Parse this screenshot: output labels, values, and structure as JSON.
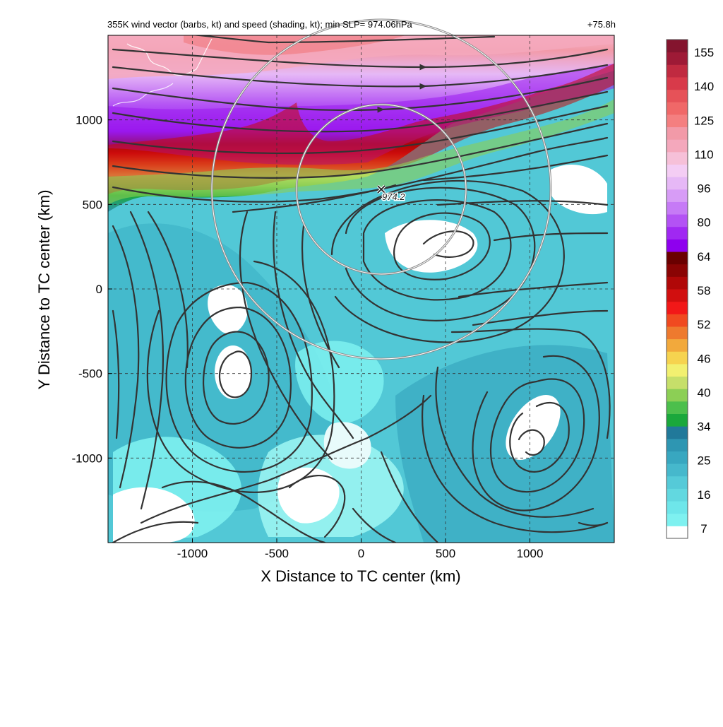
{
  "header": {
    "title": "355K wind vector (barbs, kt) and speed (shading, kt); min SLP= 974.06hPa",
    "lead_time": "+75.8h"
  },
  "chart_data": {
    "type": "heatmap",
    "title": "355K wind vector (barbs, kt) and speed (shading, kt); min SLP= 974.06hPa",
    "lead_time": "+75.8h",
    "xlabel": "X Distance to TC center (km)",
    "ylabel": "Y Distance to TC center (km)",
    "xlim": [
      -1500,
      1500
    ],
    "ylim": [
      -1500,
      1500
    ],
    "xticks": [
      -1000,
      -500,
      0,
      500,
      1000
    ],
    "yticks": [
      -1000,
      -500,
      0,
      500,
      1000
    ],
    "grid": "dashed",
    "colorbar": {
      "placement": "right",
      "tick_labels": [
        "155",
        "140",
        "125",
        "110",
        "96",
        "80",
        "64",
        "58",
        "52",
        "46",
        "40",
        "34",
        "25",
        "16",
        "7"
      ],
      "colors": [
        "#ffffff",
        "#7ef1f0",
        "#6ee6ea",
        "#62d8e0",
        "#55cad8",
        "#46b8cc",
        "#38a7c0",
        "#2e96b2",
        "#21799a",
        "#1aa83c",
        "#4cbf4c",
        "#8ccf55",
        "#c6df6a",
        "#f2f070",
        "#f6d34f",
        "#f2a93c",
        "#ee7a2e",
        "#f04a20",
        "#f21818",
        "#d10f0f",
        "#b00808",
        "#8a0404",
        "#6a0000",
        "#8e00ee",
        "#a028f2",
        "#b352f4",
        "#c67af6",
        "#d79cf6",
        "#e6b8f6",
        "#f4cdf4",
        "#f6c0d8",
        "#f4a8bc",
        "#f29aa8",
        "#f47f80",
        "#f06868",
        "#e65258",
        "#d83a4a",
        "#c02a40",
        "#9e1a36",
        "#84142e"
      ]
    },
    "tc_center_marker": {
      "x": 115,
      "y": 590,
      "label": "974.2"
    },
    "range_rings_km": [
      500,
      1000
    ],
    "ring_center": {
      "x": 115,
      "y": 590
    },
    "features": [
      {
        "name": "jet core (purple/pink)",
        "speed_kt": ">96",
        "y_range": [
          900,
          1500
        ]
      },
      {
        "name": "anticyclone (west)",
        "x": -750,
        "y": -500
      },
      {
        "name": "anticyclone (north-east)",
        "x": 420,
        "y": 250
      },
      {
        "name": "cyclone (south-east)",
        "x": 900,
        "y": -850
      }
    ]
  }
}
